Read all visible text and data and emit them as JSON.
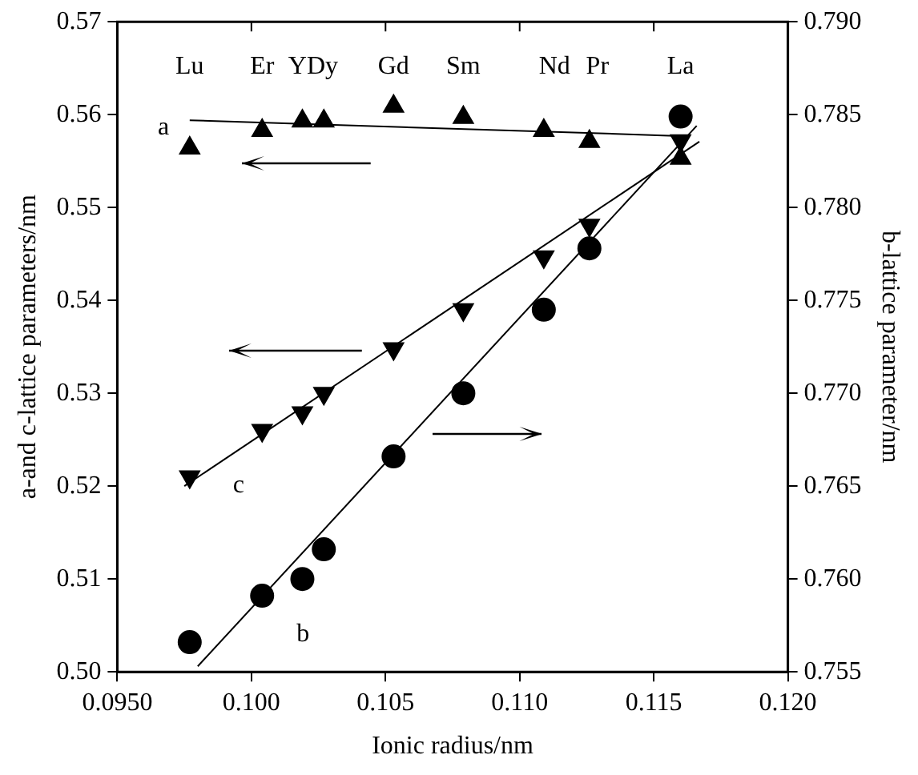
{
  "chart_data": {
    "type": "scatter",
    "xlabel": "Ionic radius/nm",
    "ylabel": "a-and c-lattice parameters/nm",
    "y2label": "b-lattice parameter/nm",
    "x": [
      0.0977,
      0.1004,
      0.1019,
      0.1027,
      0.1053,
      0.1079,
      0.1109,
      0.1126,
      0.116
    ],
    "series": [
      {
        "marker": "triangle",
        "color": "#000000",
        "values": [
          0.5564,
          0.5583,
          0.5593,
          0.5593,
          0.5609,
          0.5597,
          0.5583,
          0.5571,
          0.5553
        ]
      },
      {
        "marker": "triangle-down",
        "color": "#000000",
        "values": [
          0.521,
          0.526,
          0.5279,
          0.53,
          0.5348,
          0.539,
          0.5447,
          0.5481,
          0.5572
        ]
      },
      {
        "marker": "circle",
        "axis": "y2",
        "color": "#000000",
        "values": [
          0.7566,
          0.7591,
          0.76,
          0.7616,
          0.7666,
          0.77,
          0.7745,
          0.7778,
          0.7849
        ]
      },
      {
        "type": "line",
        "marker": "none",
        "color": "#000000",
        "x": [
          0.0977,
          0.116
        ],
        "values": [
          0.5594,
          0.5577
        ]
      },
      {
        "type": "line",
        "marker": "none",
        "color": "#000000",
        "x": [
          0.0975,
          0.1167
        ],
        "values": [
          0.52,
          0.5571
        ]
      },
      {
        "type": "line",
        "marker": "none",
        "axis": "y2",
        "color": "#000000",
        "x": [
          0.098,
          0.1166
        ],
        "values": [
          0.7553,
          0.7844
        ]
      }
    ],
    "xlim": [
      0.095,
      0.12
    ],
    "xticks": [
      {
        "value": 0.095,
        "label": "0.0950"
      },
      {
        "value": 0.1,
        "label": "0.100"
      },
      {
        "value": 0.105,
        "label": "0.105"
      },
      {
        "value": 0.11,
        "label": "0.110"
      },
      {
        "value": 0.115,
        "label": "0.115"
      },
      {
        "value": 0.12,
        "label": "0.120"
      }
    ],
    "ylim": [
      0.5,
      0.57
    ],
    "yticks": [
      {
        "value": 0.5,
        "label": "0.50"
      },
      0.51,
      0.52,
      0.53,
      0.54,
      0.55,
      0.56,
      0.57
    ],
    "y2lim": [
      0.755,
      0.79
    ],
    "y2ticks": [
      0.755,
      {
        "value": 0.76,
        "label": "0.760"
      },
      0.765,
      {
        "value": 0.77,
        "label": "0.770"
      },
      0.775,
      {
        "value": 0.78,
        "label": "0.780"
      },
      0.785,
      {
        "value": 0.79,
        "label": "0.790"
      }
    ],
    "annotations": [
      "Lu",
      "Er",
      "YDy",
      "Gd",
      "Sm",
      "Nd",
      "Pr",
      "La",
      "a",
      "c",
      "b"
    ],
    "grid": false,
    "legend": false
  }
}
